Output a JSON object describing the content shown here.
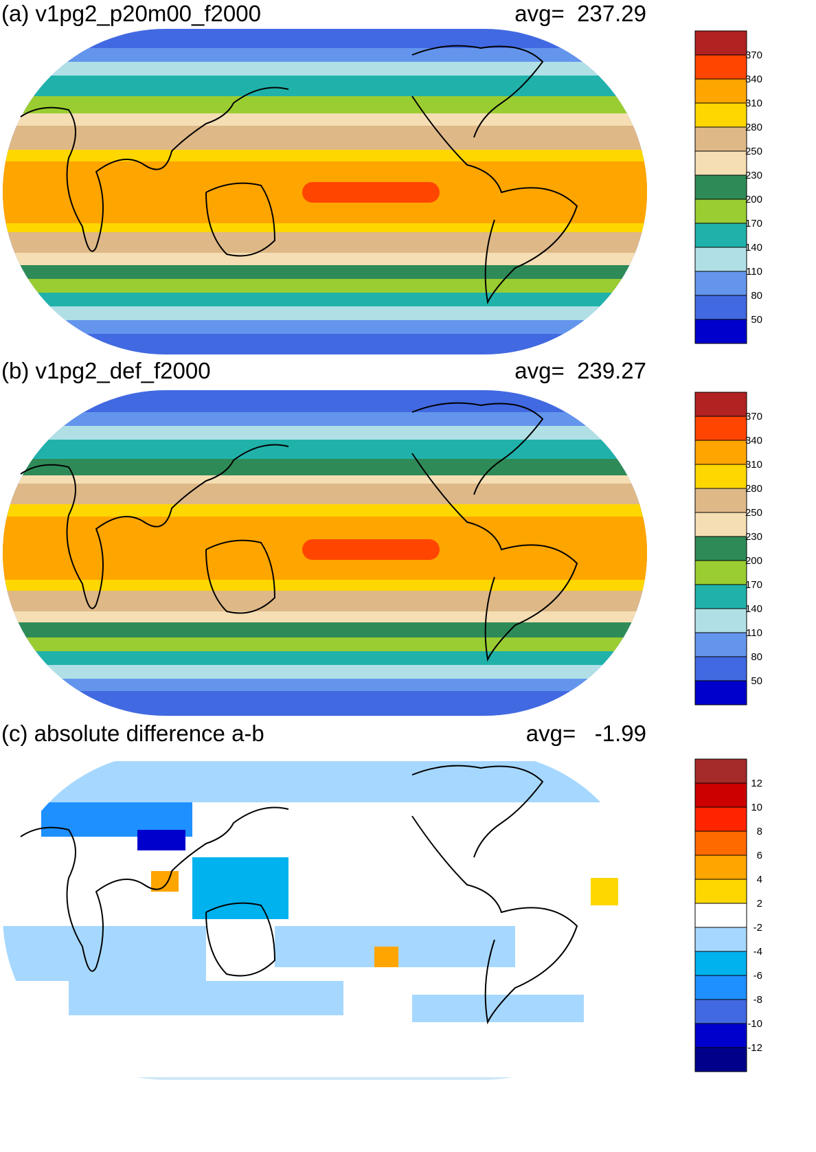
{
  "panels": [
    {
      "id": "a",
      "title": "(a) v1pg2_p20m00_f2000",
      "avg_label": "avg=",
      "avg_value": "237.29",
      "colorbar": {
        "labels": [
          "370",
          "340",
          "310",
          "280",
          "250",
          "230",
          "200",
          "170",
          "140",
          "110",
          "80",
          "50"
        ],
        "colors": [
          "#b22222",
          "#ff4500",
          "#ffa500",
          "#ffd700",
          "#deb887",
          "#f5deb3",
          "#2e8b57",
          "#9acd32",
          "#20b2aa",
          "#b0e0e6",
          "#6495ed",
          "#4169e1",
          "#0000cd"
        ]
      }
    },
    {
      "id": "b",
      "title": "(b) v1pg2_def_f2000",
      "avg_label": "avg=",
      "avg_value": "239.27",
      "colorbar": {
        "labels": [
          "370",
          "340",
          "310",
          "280",
          "250",
          "230",
          "200",
          "170",
          "140",
          "110",
          "80",
          "50"
        ],
        "colors": [
          "#b22222",
          "#ff4500",
          "#ffa500",
          "#ffd700",
          "#deb887",
          "#f5deb3",
          "#2e8b57",
          "#9acd32",
          "#20b2aa",
          "#b0e0e6",
          "#6495ed",
          "#4169e1",
          "#0000cd"
        ]
      }
    },
    {
      "id": "c",
      "title": "(c) absolute difference a-b",
      "avg_label": "avg=",
      "avg_value": " -1.99",
      "colorbar": {
        "labels": [
          "12",
          "10",
          "8",
          "6",
          "4",
          "2",
          "-2",
          "-4",
          "-6",
          "-8",
          "-10",
          "-12"
        ],
        "colors": [
          "#a52a2a",
          "#cd0000",
          "#ff2400",
          "#ff6a00",
          "#ffa500",
          "#ffd700",
          "#ffffff",
          "#a6d8ff",
          "#00b2ee",
          "#1e90ff",
          "#4169e1",
          "#0000cd",
          "#00008b"
        ]
      }
    }
  ]
}
